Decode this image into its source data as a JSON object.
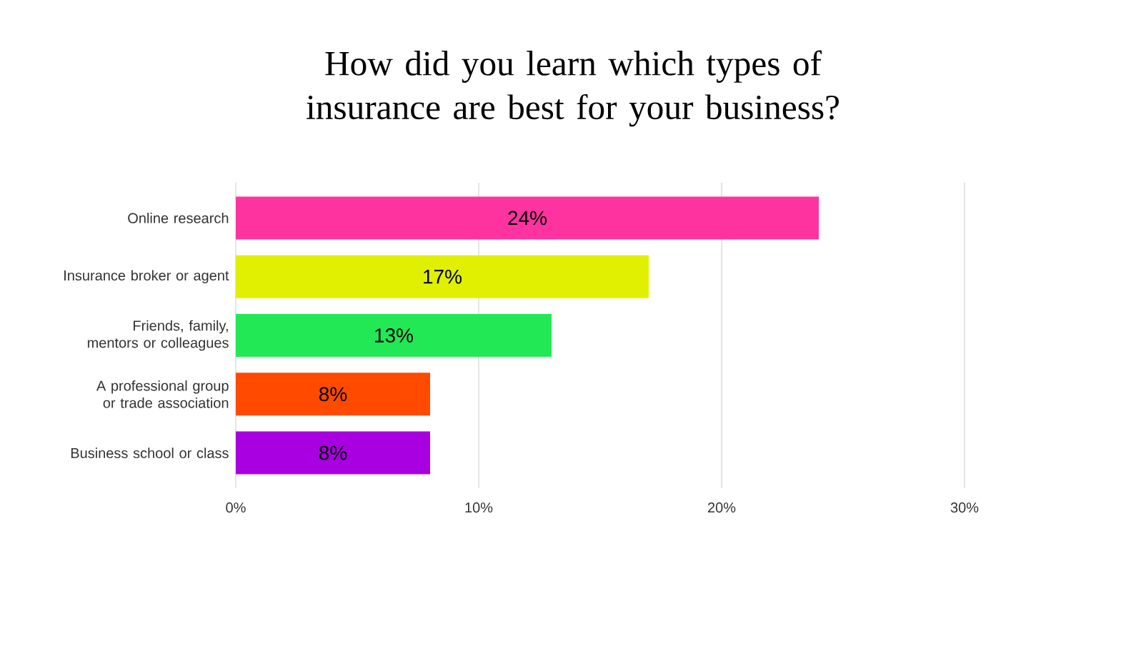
{
  "chart_data": {
    "type": "bar",
    "orientation": "horizontal",
    "title": "How did you learn which types of insurance are best for your business?",
    "categories": [
      "Online research",
      "Insurance broker or agent",
      "Friends, family, mentors or colleagues",
      "A professional group or trade association",
      "Business school or class"
    ],
    "values": [
      24,
      17,
      13,
      8,
      8
    ],
    "value_labels": [
      "24%",
      "17%",
      "13%",
      "8%",
      "8%"
    ],
    "colors": [
      "#ff33a0",
      "#e0f000",
      "#22e855",
      "#ff4a00",
      "#a800e0"
    ],
    "xlim": [
      0,
      30
    ],
    "xticks": [
      {
        "value": 0,
        "label": "0%"
      },
      {
        "value": 10,
        "label": "10%"
      },
      {
        "value": 20,
        "label": "20%"
      },
      {
        "value": 30,
        "label": "30%"
      }
    ],
    "grid": "x"
  }
}
